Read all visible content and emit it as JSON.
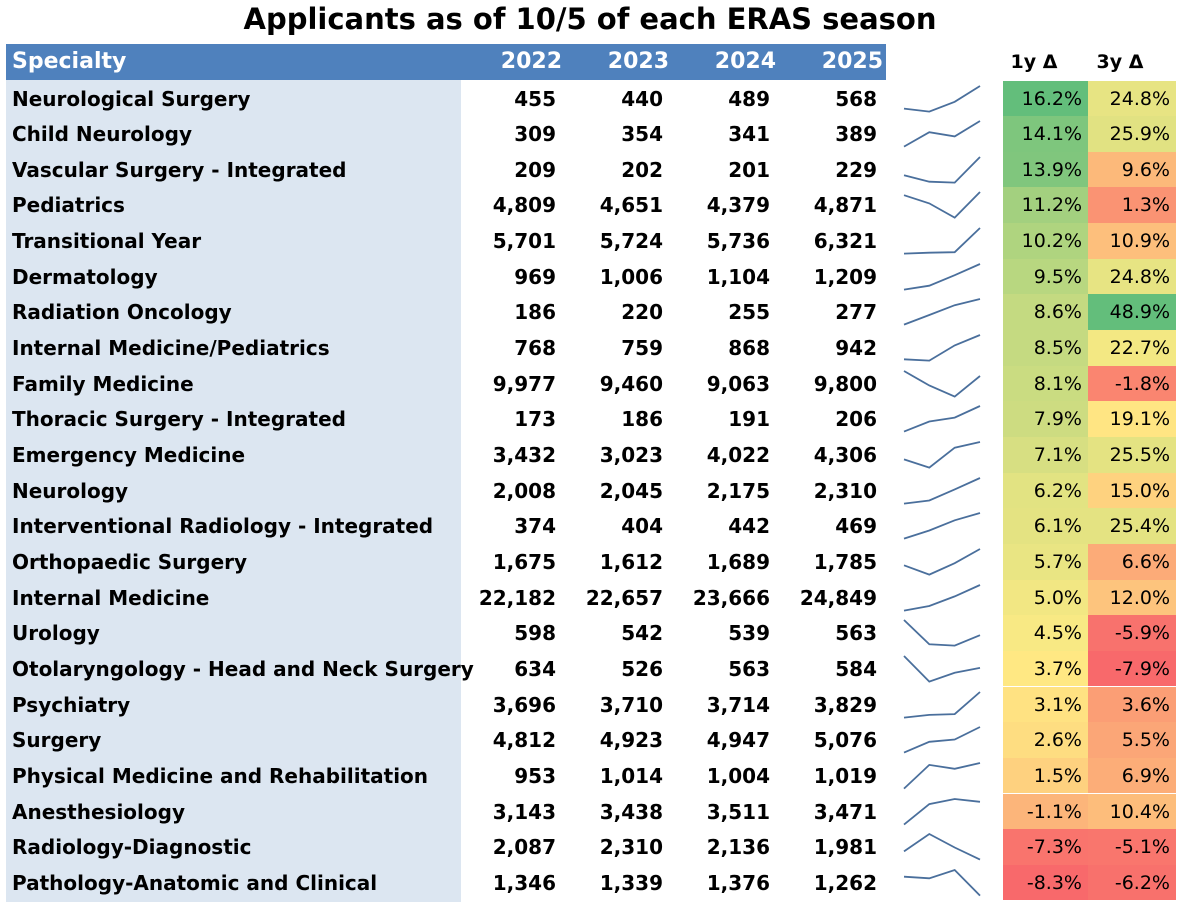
{
  "title": "Applicants as of 10/5 of each ERAS season",
  "headers": {
    "specialty": "Specialty",
    "years": [
      "2022",
      "2023",
      "2024",
      "2025"
    ],
    "delta_1y": "1y Δ",
    "delta_3y": "3y  Δ"
  },
  "colors": {
    "header_blue": "#4f81bd",
    "specialty_bg": "#dce6f1",
    "sparkline": "#4a6f9c",
    "scale_low": "#f8696b",
    "scale_mid": "#ffeb84",
    "scale_high": "#63be7b"
  },
  "rows": [
    {
      "specialty": "Neurological Surgery",
      "values": [
        455,
        440,
        489,
        568
      ],
      "labels": [
        "455",
        "440",
        "489",
        "568"
      ],
      "d1": "16.2%",
      "d3": "24.8%"
    },
    {
      "specialty": "Child Neurology",
      "values": [
        309,
        354,
        341,
        389
      ],
      "labels": [
        "309",
        "354",
        "341",
        "389"
      ],
      "d1": "14.1%",
      "d3": "25.9%"
    },
    {
      "specialty": "Vascular Surgery - Integrated",
      "values": [
        209,
        202,
        201,
        229
      ],
      "labels": [
        "209",
        "202",
        "201",
        "229"
      ],
      "d1": "13.9%",
      "d3": "9.6%"
    },
    {
      "specialty": "Pediatrics",
      "values": [
        4809,
        4651,
        4379,
        4871
      ],
      "labels": [
        "4,809",
        "4,651",
        "4,379",
        "4,871"
      ],
      "d1": "11.2%",
      "d3": "1.3%"
    },
    {
      "specialty": "Transitional Year",
      "values": [
        5701,
        5724,
        5736,
        6321
      ],
      "labels": [
        "5,701",
        "5,724",
        "5,736",
        "6,321"
      ],
      "d1": "10.2%",
      "d3": "10.9%"
    },
    {
      "specialty": "Dermatology",
      "values": [
        969,
        1006,
        1104,
        1209
      ],
      "labels": [
        "969",
        "1,006",
        "1,104",
        "1,209"
      ],
      "d1": "9.5%",
      "d3": "24.8%"
    },
    {
      "specialty": "Radiation Oncology",
      "values": [
        186,
        220,
        255,
        277
      ],
      "labels": [
        "186",
        "220",
        "255",
        "277"
      ],
      "d1": "8.6%",
      "d3": "48.9%"
    },
    {
      "specialty": "Internal Medicine/Pediatrics",
      "values": [
        768,
        759,
        868,
        942
      ],
      "labels": [
        "768",
        "759",
        "868",
        "942"
      ],
      "d1": "8.5%",
      "d3": "22.7%"
    },
    {
      "specialty": "Family Medicine",
      "values": [
        9977,
        9460,
        9063,
        9800
      ],
      "labels": [
        "9,977",
        "9,460",
        "9,063",
        "9,800"
      ],
      "d1": "8.1%",
      "d3": "-1.8%"
    },
    {
      "specialty": "Thoracic Surgery - Integrated",
      "values": [
        173,
        186,
        191,
        206
      ],
      "labels": [
        "173",
        "186",
        "191",
        "206"
      ],
      "d1": "7.9%",
      "d3": "19.1%"
    },
    {
      "specialty": "Emergency Medicine",
      "values": [
        3432,
        3023,
        4022,
        4306
      ],
      "labels": [
        "3,432",
        "3,023",
        "4,022",
        "4,306"
      ],
      "d1": "7.1%",
      "d3": "25.5%"
    },
    {
      "specialty": "Neurology",
      "values": [
        2008,
        2045,
        2175,
        2310
      ],
      "labels": [
        "2,008",
        "2,045",
        "2,175",
        "2,310"
      ],
      "d1": "6.2%",
      "d3": "15.0%"
    },
    {
      "specialty": "Interventional Radiology - Integrated",
      "values": [
        374,
        404,
        442,
        469
      ],
      "labels": [
        "374",
        "404",
        "442",
        "469"
      ],
      "d1": "6.1%",
      "d3": "25.4%"
    },
    {
      "specialty": "Orthopaedic Surgery",
      "values": [
        1675,
        1612,
        1689,
        1785
      ],
      "labels": [
        "1,675",
        "1,612",
        "1,689",
        "1,785"
      ],
      "d1": "5.7%",
      "d3": "6.6%"
    },
    {
      "specialty": "Internal Medicine",
      "values": [
        22182,
        22657,
        23666,
        24849
      ],
      "labels": [
        "22,182",
        "22,657",
        "23,666",
        "24,849"
      ],
      "d1": "5.0%",
      "d3": "12.0%"
    },
    {
      "specialty": "Urology",
      "values": [
        598,
        542,
        539,
        563
      ],
      "labels": [
        "598",
        "542",
        "539",
        "563"
      ],
      "d1": "4.5%",
      "d3": "-5.9%"
    },
    {
      "specialty": "Otolaryngology - Head and Neck Surgery",
      "values": [
        634,
        526,
        563,
        584
      ],
      "labels": [
        "634",
        "526",
        "563",
        "584"
      ],
      "d1": "3.7%",
      "d3": "-7.9%"
    },
    {
      "specialty": "Psychiatry",
      "values": [
        3696,
        3710,
        3714,
        3829
      ],
      "labels": [
        "3,696",
        "3,710",
        "3,714",
        "3,829"
      ],
      "d1": "3.1%",
      "d3": "3.6%"
    },
    {
      "specialty": "Surgery",
      "values": [
        4812,
        4923,
        4947,
        5076
      ],
      "labels": [
        "4,812",
        "4,923",
        "4,947",
        "5,076"
      ],
      "d1": "2.6%",
      "d3": "5.5%"
    },
    {
      "specialty": "Physical Medicine and Rehabilitation",
      "values": [
        953,
        1014,
        1004,
        1019
      ],
      "labels": [
        "953",
        "1,014",
        "1,004",
        "1,019"
      ],
      "d1": "1.5%",
      "d3": "6.9%"
    },
    {
      "specialty": "Anesthesiology",
      "values": [
        3143,
        3438,
        3511,
        3471
      ],
      "labels": [
        "3,143",
        "3,438",
        "3,511",
        "3,471"
      ],
      "d1": "-1.1%",
      "d3": "10.4%"
    },
    {
      "specialty": "Radiology-Diagnostic",
      "values": [
        2087,
        2310,
        2136,
        1981
      ],
      "labels": [
        "2,087",
        "2,310",
        "2,136",
        "1,981"
      ],
      "d1": "-7.3%",
      "d3": "-5.1%"
    },
    {
      "specialty": "Pathology-Anatomic and Clinical",
      "values": [
        1346,
        1339,
        1376,
        1262
      ],
      "labels": [
        "1,346",
        "1,339",
        "1,376",
        "1,262"
      ],
      "d1": "-8.3%",
      "d3": "-6.2%"
    }
  ]
}
